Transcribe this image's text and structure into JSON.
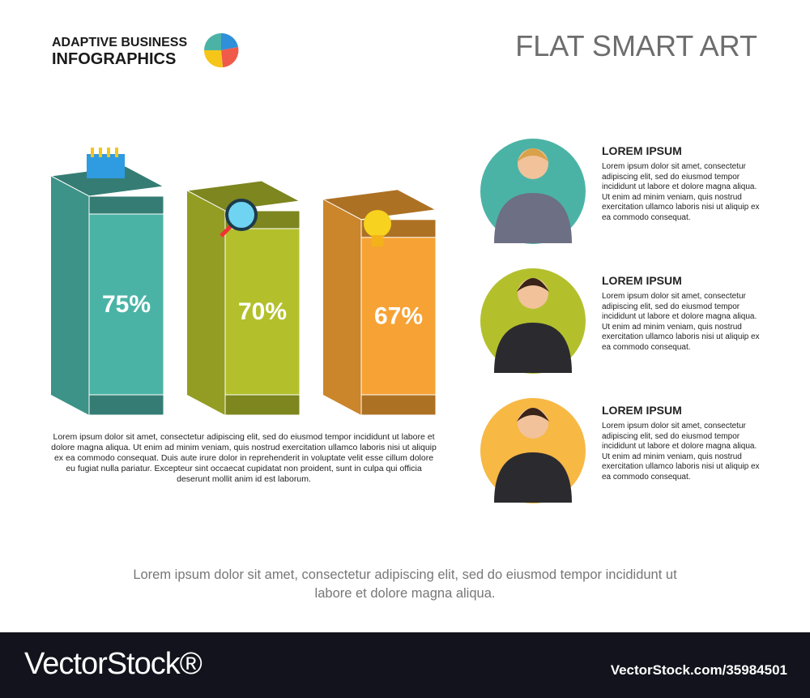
{
  "header": {
    "brand_lines": [
      "ADAPTIVE BUSINESS",
      "INFOGRAPHICS"
    ],
    "title": "FLAT SMART ART"
  },
  "chart_data": {
    "type": "bar",
    "values": [
      75,
      70,
      67
    ],
    "value_labels": [
      "75%",
      "70%",
      "67%"
    ],
    "colors": [
      "#4bb3a6",
      "#b3c02c",
      "#f7a234"
    ],
    "description": "Lorem ipsum dolor sit amet, consectetur adipiscing elit, sed do eiusmod tempor incididunt ut labore et dolore magna aliqua. Ut enim ad minim veniam, quis nostrud exercitation ullamco laboris nisi ut aliquip ex ea commodo consequat. Duis aute irure dolor in reprehenderit in voluptate velit esse cillum dolore eu fugiat nulla pariatur. Excepteur sint occaecat cupidatat non proident, sunt in culpa qui officia deserunt mollit anim id est laborum."
  },
  "people": [
    {
      "heading": "LOREM IPSUM",
      "text": "Lorem ipsum dolor sit amet, consectetur adipiscing elit, sed do eiusmod tempor incididunt ut labore et dolore magna aliqua. Ut enim ad minim veniam, quis nostrud exercitation ullamco laboris nisi ut aliquip ex ea commodo consequat.",
      "color": "#4bb3a6"
    },
    {
      "heading": "LOREM IPSUM",
      "text": "Lorem ipsum dolor sit amet, consectetur adipiscing elit, sed do eiusmod tempor incididunt ut labore et dolore magna aliqua. Ut enim ad minim veniam, quis nostrud exercitation ullamco laboris nisi ut aliquip ex ea commodo consequat.",
      "color": "#b3c02c"
    },
    {
      "heading": "LOREM IPSUM",
      "text": "Lorem ipsum dolor sit amet, consectetur adipiscing elit, sed do eiusmod tempor incididunt ut labore et dolore magna aliqua. Ut enim ad minim veniam, quis nostrud exercitation ullamco laboris nisi ut aliquip ex ea commodo consequat.",
      "color": "#f7b844"
    }
  ],
  "footer": {
    "text": "Lorem ipsum dolor sit amet, consectetur adipiscing elit, sed do eiusmod tempor incididunt ut labore et dolore magna aliqua."
  },
  "watermark": {
    "brand": "VectorStock®",
    "id": "VectorStock.com/35984501"
  }
}
